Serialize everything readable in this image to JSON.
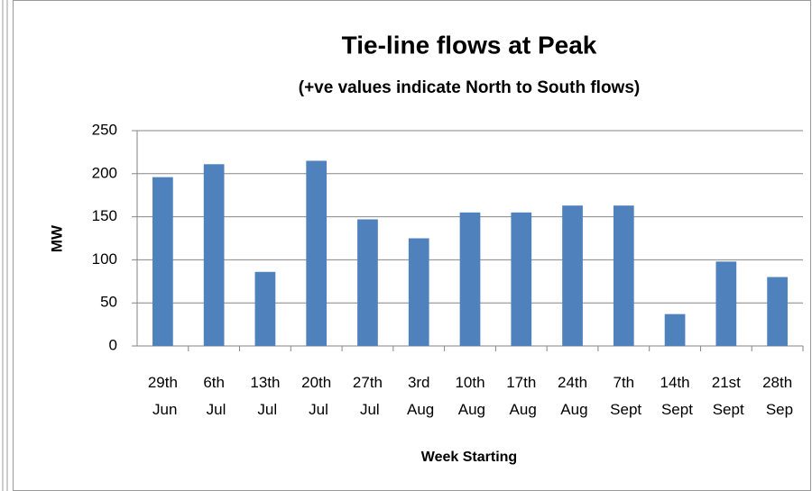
{
  "chart_data": {
    "type": "bar",
    "title": "Tie-line flows at Peak",
    "subtitle": "(+ve values indicate North to South flows)",
    "y_label": "MW",
    "x_label": "Week Starting",
    "categories": [
      "29th Jun",
      "6th Jul",
      "13th Jul",
      "20th Jul",
      "27th Jul",
      "3rd Aug",
      "10th Aug",
      "17th Aug",
      "24th Aug",
      "7th Sept",
      "14th Sept",
      "21st Sept",
      "28th Sep"
    ],
    "values": [
      196,
      211,
      86,
      215,
      147,
      125,
      155,
      155,
      163,
      163,
      37,
      98,
      80
    ],
    "color": "#4f81bd",
    "ylim": [
      0,
      250
    ],
    "yticks": [
      0,
      50,
      100,
      150,
      200,
      250
    ],
    "grid": true
  }
}
